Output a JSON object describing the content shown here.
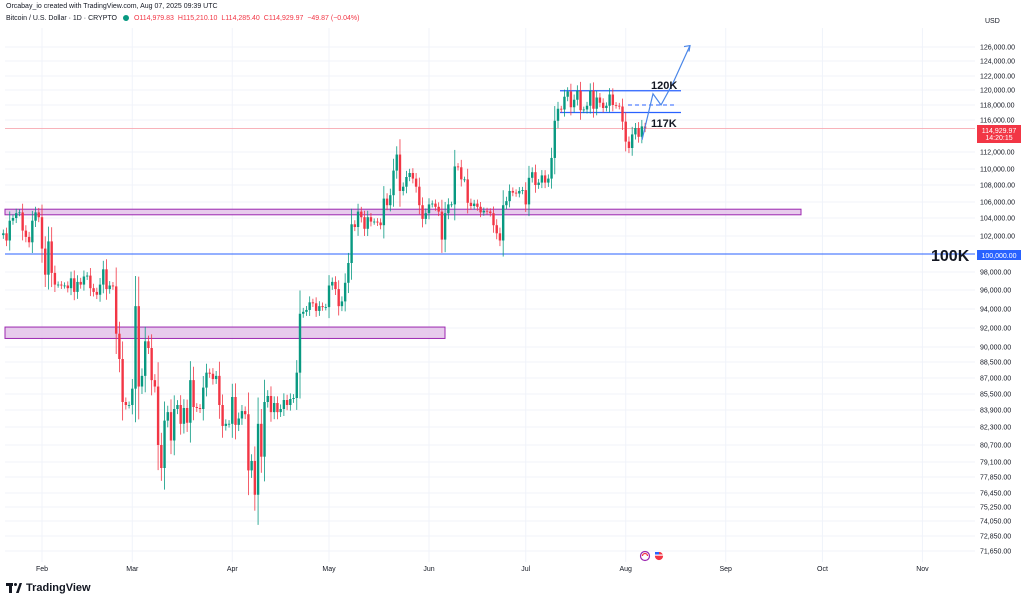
{
  "header": {
    "attribution": "Orcabay_io created with TradingView.com, Aug 07, 2025 09:39 UTC",
    "symbol": "Bitcoin / U.S. Dollar · 1D · CRYPTO",
    "open": "O114,979.83",
    "high": "H115,210.10",
    "low": "L114,285.40",
    "close": "C114,929.97",
    "change": "−49.87 (−0.04%)"
  },
  "footer": {
    "brand": "TradingView"
  },
  "axis": {
    "currency": "USD",
    "price_labels": [
      "126,000.00",
      "124,000.00",
      "122,000.00",
      "120,000.00",
      "118,000.00",
      "116,000.00",
      "112,000.00",
      "110,000.00",
      "108,000.00",
      "106,000.00",
      "104,000.00",
      "102,000.00",
      "98,000.00",
      "96,000.00",
      "94,000.00",
      "92,000.00",
      "90,000.00",
      "88,500.00",
      "87,000.00",
      "85,500.00",
      "83,900.00",
      "82,300.00",
      "80,700.00",
      "79,100.00",
      "77,850.00",
      "76,450.00",
      "75,250.00",
      "74,050.00",
      "72,850.00",
      "71,650.00"
    ],
    "price_tag": "114,929.97",
    "countdown": "14:20:15",
    "level_tag": "100,000.00",
    "months": [
      "Feb",
      "Mar",
      "Apr",
      "May",
      "Jun",
      "Jul",
      "Aug",
      "Sep",
      "Oct",
      "Nov"
    ]
  },
  "annotations": {
    "resistance_label": "120K",
    "support_label": "117K",
    "big_level_label": "100K"
  },
  "colors": {
    "up": "#089981",
    "down": "#f23645",
    "line": "#2962ff",
    "zone_fill": "#e1bee7",
    "zone_stroke": "#9c27b0"
  },
  "chart_data": {
    "type": "candlestick",
    "symbol": "Bitcoin / U.S. Dollar",
    "interval": "1D",
    "x_axis": [
      "Feb",
      "Mar",
      "Apr",
      "May",
      "Jun",
      "Jul",
      "Aug",
      "Sep",
      "Oct",
      "Nov"
    ],
    "ylim": [
      70800,
      127000
    ],
    "last_price": 114929.97,
    "horizontal_levels": [
      {
        "label": "120K",
        "value": 119900
      },
      {
        "label": "117K",
        "value": 117000
      },
      {
        "label": "100K",
        "value": 100000
      }
    ],
    "zones": [
      {
        "low": 104400,
        "high": 105100
      },
      {
        "low": 90900,
        "high": 92100
      }
    ],
    "series": [
      {
        "dates": [
          "2025-01-20",
          "2025-01-21",
          "2025-01-22",
          "2025-01-23",
          "2025-01-24",
          "2025-01-25",
          "2025-01-26",
          "2025-01-27",
          "2025-01-28",
          "2025-01-29",
          "2025-01-30",
          "2025-01-31",
          "2025-02-01",
          "2025-02-02",
          "2025-02-03",
          "2025-02-04",
          "2025-02-05",
          "2025-02-06",
          "2025-02-07",
          "2025-02-08",
          "2025-02-09",
          "2025-02-10",
          "2025-02-11",
          "2025-02-12",
          "2025-02-13",
          "2025-02-14",
          "2025-02-15",
          "2025-02-16",
          "2025-02-17",
          "2025-02-18",
          "2025-02-19",
          "2025-02-20",
          "2025-02-21",
          "2025-02-22",
          "2025-02-23",
          "2025-02-24",
          "2025-02-25",
          "2025-02-26",
          "2025-02-27",
          "2025-02-28",
          "2025-03-01",
          "2025-03-02",
          "2025-03-03",
          "2025-03-04",
          "2025-03-05",
          "2025-03-06",
          "2025-03-07",
          "2025-03-08",
          "2025-03-09",
          "2025-03-10",
          "2025-03-11",
          "2025-03-12",
          "2025-03-13",
          "2025-03-14",
          "2025-03-15",
          "2025-03-16",
          "2025-03-17",
          "2025-03-18",
          "2025-03-19",
          "2025-03-20",
          "2025-03-21",
          "2025-03-22",
          "2025-03-23",
          "2025-03-24",
          "2025-03-25",
          "2025-03-26",
          "2025-03-27",
          "2025-03-28",
          "2025-03-29",
          "2025-03-30",
          "2025-03-31",
          "2025-04-01",
          "2025-04-02",
          "2025-04-03",
          "2025-04-04",
          "2025-04-05",
          "2025-04-06",
          "2025-04-07",
          "2025-04-08",
          "2025-04-09",
          "2025-04-10",
          "2025-04-11",
          "2025-04-12",
          "2025-04-13",
          "2025-04-14",
          "2025-04-15",
          "2025-04-16",
          "2025-04-17",
          "2025-04-18",
          "2025-04-19",
          "2025-04-20",
          "2025-04-21",
          "2025-04-22",
          "2025-04-23",
          "2025-04-24",
          "2025-04-25",
          "2025-04-26",
          "2025-04-27",
          "2025-04-28",
          "2025-04-29",
          "2025-04-30",
          "2025-05-01",
          "2025-05-02",
          "2025-05-03",
          "2025-05-04",
          "2025-05-05",
          "2025-05-06",
          "2025-05-07",
          "2025-05-08",
          "2025-05-09",
          "2025-05-10",
          "2025-05-11",
          "2025-05-12",
          "2025-05-13",
          "2025-05-14",
          "2025-05-15",
          "2025-05-16",
          "2025-05-17",
          "2025-05-18",
          "2025-05-19",
          "2025-05-20",
          "2025-05-21",
          "2025-05-22",
          "2025-05-23",
          "2025-05-24",
          "2025-05-25",
          "2025-05-26",
          "2025-05-27",
          "2025-05-28",
          "2025-05-29",
          "2025-05-30",
          "2025-05-31",
          "2025-06-01",
          "2025-06-02",
          "2025-06-03",
          "2025-06-04",
          "2025-06-05",
          "2025-06-06",
          "2025-06-07",
          "2025-06-08",
          "2025-06-09",
          "2025-06-10",
          "2025-06-11",
          "2025-06-12",
          "2025-06-13",
          "2025-06-14",
          "2025-06-15",
          "2025-06-16",
          "2025-06-17",
          "2025-06-18",
          "2025-06-19",
          "2025-06-20",
          "2025-06-21",
          "2025-06-22",
          "2025-06-23",
          "2025-06-24",
          "2025-06-25",
          "2025-06-26",
          "2025-06-27",
          "2025-06-28",
          "2025-06-29",
          "2025-06-30",
          "2025-07-01",
          "2025-07-02",
          "2025-07-03",
          "2025-07-04",
          "2025-07-05",
          "2025-07-06",
          "2025-07-07",
          "2025-07-08",
          "2025-07-09",
          "2025-07-10",
          "2025-07-11",
          "2025-07-12",
          "2025-07-13",
          "2025-07-14",
          "2025-07-15",
          "2025-07-16",
          "2025-07-17",
          "2025-07-18",
          "2025-07-19",
          "2025-07-20",
          "2025-07-21",
          "2025-07-22",
          "2025-07-23",
          "2025-07-24",
          "2025-07-25",
          "2025-07-26",
          "2025-07-27",
          "2025-07-28",
          "2025-07-29",
          "2025-07-30",
          "2025-07-31",
          "2025-08-01",
          "2025-08-02",
          "2025-08-03",
          "2025-08-04",
          "2025-08-05",
          "2025-08-06",
          "2025-08-07"
        ],
        "close": [
          102300,
          101500,
          103700,
          104000,
          104600,
          104700,
          102600,
          101900,
          101300,
          103700,
          104700,
          104100,
          100600,
          97700,
          101400,
          97900,
          96600,
          96600,
          96500,
          96500,
          96200,
          97300,
          95800,
          96900,
          96600,
          97500,
          97600,
          96200,
          95800,
          95500,
          96600,
          98300,
          96100,
          96500,
          96400,
          91400,
          88800,
          84700,
          84400,
          84400,
          86000,
          94300,
          86200,
          87200,
          90600,
          89900,
          86800,
          86200,
          80700,
          78600,
          82900,
          83700,
          81100,
          84000,
          84400,
          82600,
          84100,
          82700,
          86800,
          84200,
          84100,
          84000,
          86100,
          87500,
          87400,
          86900,
          87200,
          84400,
          82400,
          82600,
          82600,
          85200,
          82500,
          83100,
          83800,
          83500,
          78400,
          79200,
          76300,
          82600,
          79600,
          84700,
          85300,
          83700,
          84600,
          83700,
          84000,
          84900,
          84400,
          85000,
          85100,
          87500,
          93500,
          93700,
          93900,
          94700,
          94600,
          93800,
          94300,
          94200,
          94200,
          96500,
          96900,
          96100,
          94300,
          94800,
          96800,
          99000,
          103300,
          103000,
          104800,
          104100,
          102800,
          104100,
          103600,
          103600,
          103500,
          103200,
          106400,
          105600,
          106800,
          109800,
          111700,
          107300,
          107800,
          109000,
          109500,
          108800,
          107800,
          105600,
          103900,
          104600,
          105700,
          105800,
          105400,
          104800,
          101600,
          104600,
          105700,
          105700,
          110300,
          110200,
          108700,
          108700,
          105900,
          105500,
          105800,
          105400,
          104700,
          104900,
          104800,
          104600,
          103200,
          102300,
          101500,
          105600,
          106100,
          107300,
          107100,
          107000,
          107300,
          107400,
          105700,
          108900,
          109600,
          108000,
          108300,
          109200,
          108300,
          108800,
          111300,
          115900,
          117500,
          117400,
          119100,
          119800,
          117700,
          118700,
          119900,
          117300,
          117400,
          117900,
          119900,
          117500,
          119000,
          118300,
          117600,
          117900,
          119400,
          118000,
          117900,
          117800,
          115800,
          113300,
          112500,
          114200,
          115000,
          113900,
          115200,
          114930
        ]
      }
    ]
  }
}
